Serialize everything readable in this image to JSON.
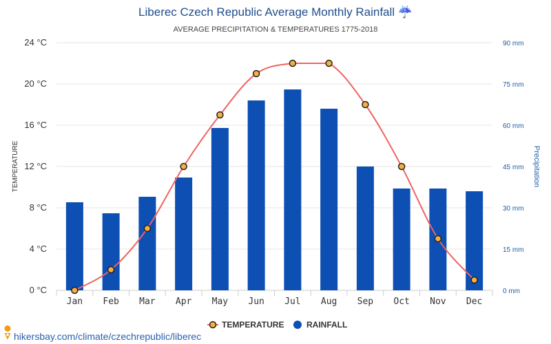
{
  "chart_data": {
    "type": "bar+line",
    "title": "Liberec Czech Republic Average Monthly Rainfall ☔",
    "subtitle": "AVERAGE PRECIPITATION & TEMPERATURES 1775-2018",
    "categories": [
      "Jan",
      "Feb",
      "Mar",
      "Apr",
      "May",
      "Jun",
      "Jul",
      "Aug",
      "Sep",
      "Oct",
      "Nov",
      "Dec"
    ],
    "series": [
      {
        "name": "TEMPERATURE",
        "type": "line",
        "axis": "left",
        "color": "#f06262",
        "marker_fill": "#f5b041",
        "values": [
          0,
          2,
          6,
          12,
          17,
          21,
          22,
          22,
          18,
          12,
          5,
          1
        ]
      },
      {
        "name": "RAINFALL",
        "type": "bar",
        "axis": "right",
        "color": "#0d4fb3",
        "values": [
          32,
          28,
          34,
          41,
          59,
          69,
          73,
          66,
          45,
          37,
          37,
          36
        ]
      }
    ],
    "y_left": {
      "label": "TEMPERATURE",
      "range": [
        0,
        24
      ],
      "ticks": [
        "0 °C",
        "4 °C",
        "8 °C",
        "12 °C",
        "16 °C",
        "20 °C",
        "24 °C"
      ]
    },
    "y_right": {
      "label": "Precipitation",
      "range": [
        0,
        90
      ],
      "ticks": [
        "0 mm",
        "15 mm",
        "30 mm",
        "45 mm",
        "60 mm",
        "75 mm",
        "90 mm"
      ]
    },
    "grid": true,
    "legend_position": "bottom"
  },
  "source": {
    "text": "hikersbay.com/climate/czechrepublic/liberec",
    "icon": "location-pin-icon"
  }
}
